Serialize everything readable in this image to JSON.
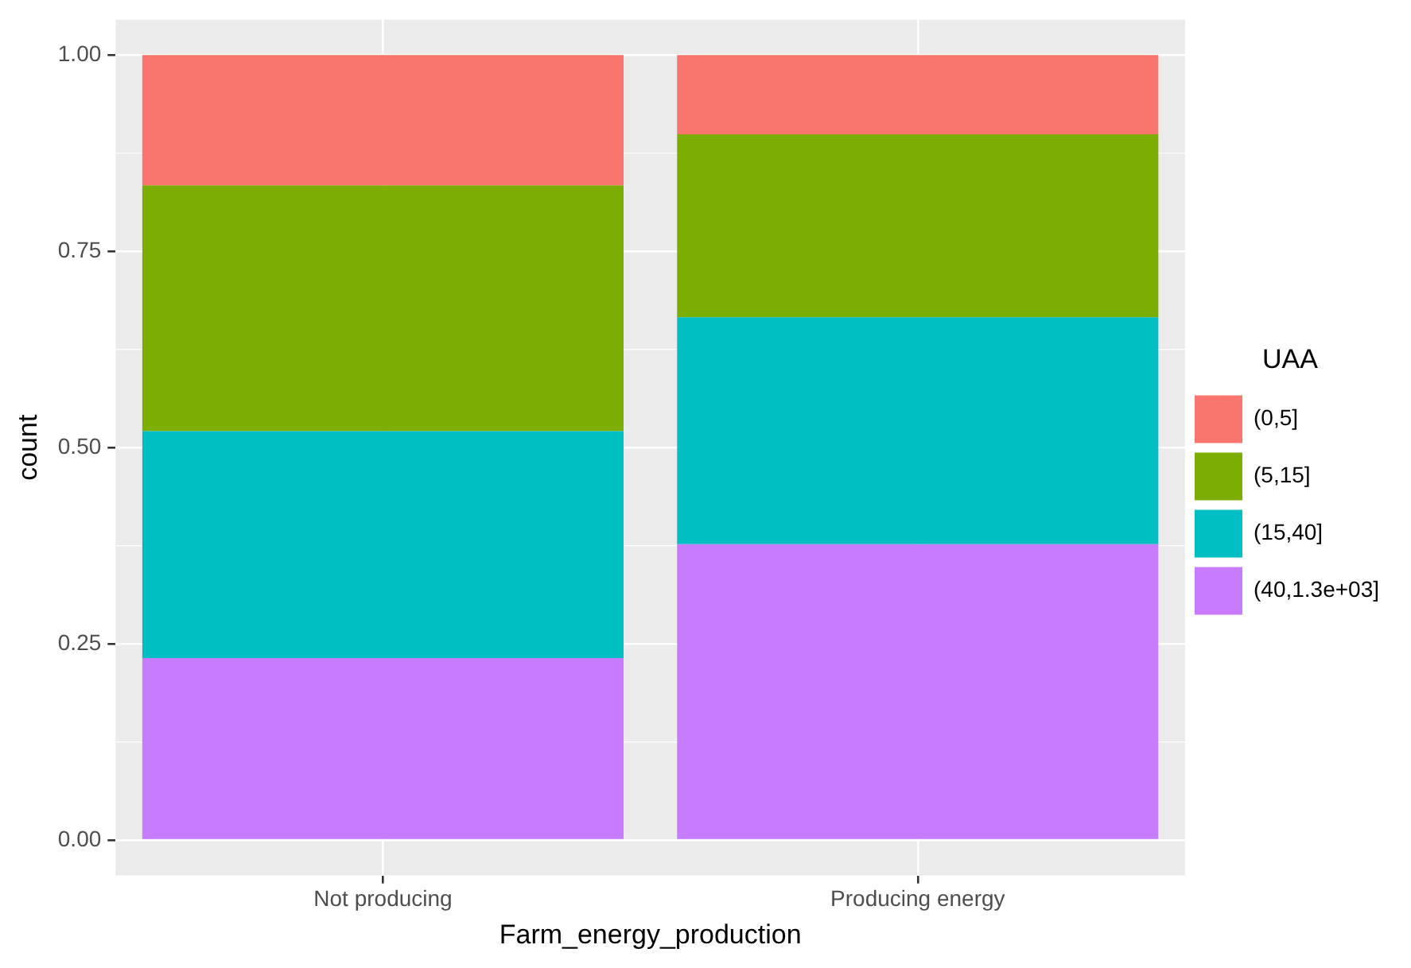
{
  "chart_data": {
    "type": "bar",
    "stacked": true,
    "xlabel": "Farm_energy_production",
    "ylabel": "count",
    "legend_title": "UAA",
    "legend": "right",
    "categories": [
      "Not producing",
      "Producing energy"
    ],
    "series": [
      {
        "name": "(40,1.3e+03]",
        "color": "#c77cff",
        "values": [
          0.232,
          0.377
        ]
      },
      {
        "name": "(15,40]",
        "color": "#00bfc4",
        "values": [
          0.289,
          0.289
        ]
      },
      {
        "name": "(5,15]",
        "color": "#7cae00",
        "values": [
          0.313,
          0.233
        ]
      },
      {
        "name": "(0,5]",
        "color": "#f8766d",
        "values": [
          0.166,
          0.101
        ]
      }
    ],
    "ylim": [
      -0.045,
      1.045
    ],
    "yticks": [
      {
        "value": 0,
        "label": "0.00"
      },
      {
        "value": 0.25,
        "label": "0.25"
      },
      {
        "value": 0.5,
        "label": "0.50"
      },
      {
        "value": 0.75,
        "label": "0.75"
      },
      {
        "value": 1,
        "label": "1.00"
      }
    ],
    "grid": true
  }
}
